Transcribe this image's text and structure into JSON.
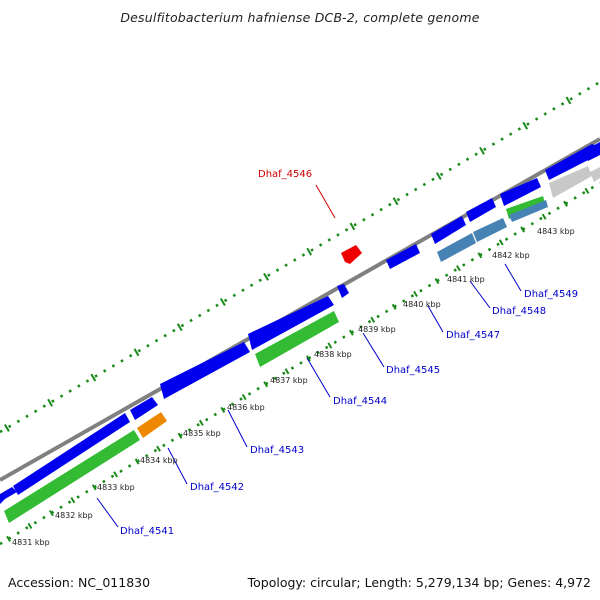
{
  "title": "Desulfitobacterium hafniense DCB-2, complete genome",
  "footer": {
    "accession": "Accession: NC_011830",
    "info": "Topology: circular; Length: 5,279,134 bp; Genes: 4,972"
  },
  "colors": {
    "backbone": "#808080",
    "dots": "#1a8a1a",
    "cds": "#0000ee",
    "trna": "#ee8800",
    "rrna": "#33bb33",
    "pseudo": "#4682b4",
    "grey_feature": "#c8c8c8",
    "highlight": "#ee0000",
    "label_blue": "#0000cc",
    "label_red": "#cc0000"
  },
  "scale_ticks": [
    "4831 kbp",
    "4832 kbp",
    "4833 kbp",
    "4834 kbp",
    "4835 kbp",
    "4836 kbp",
    "4837 kbp",
    "4838 kbp",
    "4839 kbp",
    "4840 kbp",
    "4841 kbp",
    "4842 kbp",
    "4843 kbp"
  ],
  "gene_labels": [
    {
      "text": "Dhaf_4541",
      "highlight": false
    },
    {
      "text": "Dhaf_4542",
      "highlight": false
    },
    {
      "text": "Dhaf_4543",
      "highlight": false
    },
    {
      "text": "Dhaf_4544",
      "highlight": false
    },
    {
      "text": "Dhaf_4545",
      "highlight": false
    },
    {
      "text": "Dhaf_4546",
      "highlight": true
    },
    {
      "text": "Dhaf_4547",
      "highlight": false
    },
    {
      "text": "Dhaf_4548",
      "highlight": false
    },
    {
      "text": "Dhaf_4549",
      "highlight": false
    }
  ]
}
